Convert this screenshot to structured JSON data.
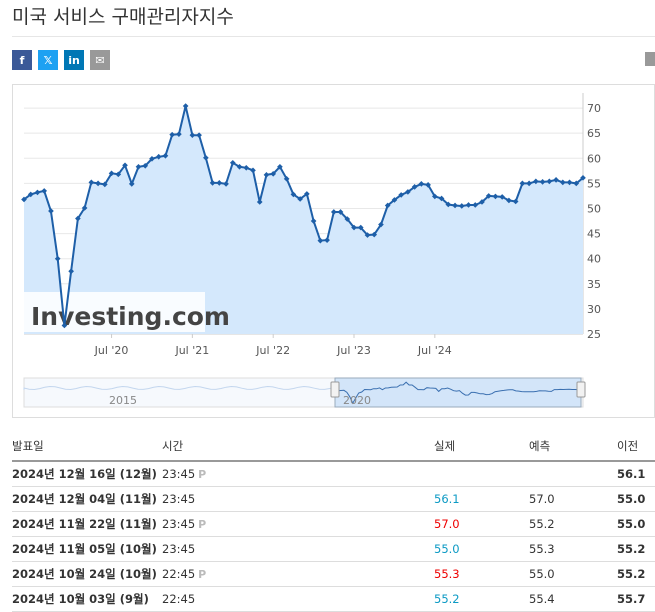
{
  "title": "미국 서비스 구매관리자지수",
  "share": [
    {
      "icon": "facebook-icon",
      "glyph": "f"
    },
    {
      "icon": "x-icon",
      "glyph": "𝕏"
    },
    {
      "icon": "linkedin-icon",
      "glyph": "in"
    },
    {
      "icon": "email-icon",
      "glyph": "✉"
    }
  ],
  "chart_data": {
    "type": "area",
    "y_ticks": [
      25,
      30,
      35,
      40,
      45,
      50,
      55,
      60,
      65,
      70
    ],
    "ylim": [
      25,
      73
    ],
    "x_ticks": [
      "Jul '20",
      "Jul '21",
      "Jul '22",
      "Jul '23",
      "Jul '24"
    ],
    "watermark": "Investing.com",
    "navigator_labels": [
      "2015",
      "2020"
    ],
    "colors": {
      "line": "#1e5fa8",
      "fill": "#d4e8fc",
      "fill_line": "#a9c8ec"
    },
    "values": [
      51.8,
      52.8,
      53.2,
      53.5,
      49.5,
      40.0,
      26.7,
      37.5,
      48.0,
      50.1,
      55.2,
      55.0,
      54.8,
      57.0,
      56.8,
      58.6,
      54.9,
      58.3,
      58.5,
      59.9,
      60.3,
      60.5,
      64.7,
      64.8,
      70.4,
      64.6,
      64.6,
      60.1,
      55.1,
      55.1,
      54.9,
      59.1,
      58.3,
      58.1,
      57.6,
      51.3,
      56.7,
      56.9,
      58.3,
      55.9,
      52.8,
      51.9,
      52.9,
      47.5,
      43.6,
      43.7,
      49.3,
      49.3,
      47.9,
      46.2,
      46.2,
      44.7,
      44.8,
      46.8,
      50.6,
      51.7,
      52.7,
      53.3,
      54.3,
      54.9,
      54.7,
      52.4,
      52.0,
      50.8,
      50.6,
      50.5,
      50.7,
      50.7,
      51.3,
      52.5,
      52.4,
      52.3,
      51.6,
      51.4,
      55.0,
      55.0,
      55.4,
      55.3,
      55.4,
      55.7,
      55.2,
      55.2,
      55.0,
      56.1
    ]
  },
  "table": {
    "headers": {
      "date": "발표일",
      "time": "시간",
      "actual": "실제",
      "forecast": "예측",
      "previous": "이전"
    },
    "rows": [
      {
        "date": "2024년 12월 16일 (12월)",
        "time": "23:45",
        "prelim": "P",
        "actual": "",
        "actual_color": "",
        "forecast": "",
        "previous": "56.1"
      },
      {
        "date": "2024년 12월 04일 (11월)",
        "time": "23:45",
        "prelim": "",
        "actual": "56.1",
        "actual_color": "green",
        "forecast": "57.0",
        "previous": "55.0"
      },
      {
        "date": "2024년 11월 22일 (11월)",
        "time": "23:45",
        "prelim": "P",
        "actual": "57.0",
        "actual_color": "red",
        "forecast": "55.2",
        "previous": "55.0"
      },
      {
        "date": "2024년 11월 05일 (10월)",
        "time": "23:45",
        "prelim": "",
        "actual": "55.0",
        "actual_color": "green",
        "forecast": "55.3",
        "previous": "55.2"
      },
      {
        "date": "2024년 10월 24일 (10월)",
        "time": "22:45",
        "prelim": "P",
        "actual": "55.3",
        "actual_color": "red",
        "forecast": "55.0",
        "previous": "55.2"
      },
      {
        "date": "2024년 10월 03일 (9월)",
        "time": "22:45",
        "prelim": "",
        "actual": "55.2",
        "actual_color": "green",
        "forecast": "55.4",
        "previous": "55.7"
      }
    ]
  }
}
